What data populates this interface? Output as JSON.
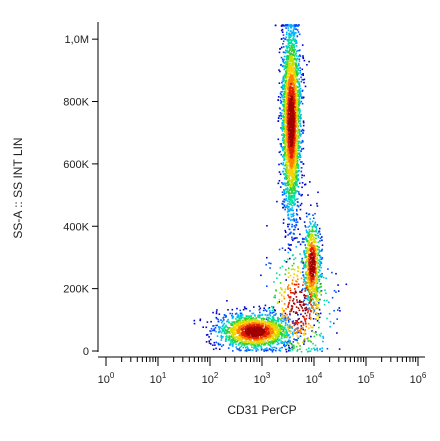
{
  "chart_data": {
    "type": "scatter",
    "plot_style": "density-dot-plot",
    "title": "",
    "xlabel": "CD31 PerCP",
    "ylabel": "SS-A :: SS INT LIN",
    "x_scale": "log",
    "y_scale": "linear",
    "xlim": [
      1,
      1000000
    ],
    "ylim": [
      0,
      1048576
    ],
    "x_ticks": [
      {
        "value": 1,
        "base": "10",
        "exp": "0"
      },
      {
        "value": 10,
        "base": "10",
        "exp": "1"
      },
      {
        "value": 100,
        "base": "10",
        "exp": "2"
      },
      {
        "value": 1000,
        "base": "10",
        "exp": "3"
      },
      {
        "value": 10000,
        "base": "10",
        "exp": "4"
      },
      {
        "value": 100000,
        "base": "10",
        "exp": "5"
      },
      {
        "value": 1000000,
        "base": "10",
        "exp": "6"
      }
    ],
    "y_ticks": [
      {
        "value": 0,
        "label": "0"
      },
      {
        "value": 200000,
        "label": "200K"
      },
      {
        "value": 400000,
        "label": "400K"
      },
      {
        "value": 600000,
        "label": "600K"
      },
      {
        "value": 800000,
        "label": "800K"
      },
      {
        "value": 1000000,
        "label": "1,0M"
      }
    ],
    "density_colors": [
      "#0000cc",
      "#0050ff",
      "#00b4ff",
      "#00e0a0",
      "#30d030",
      "#c8e000",
      "#ffd000",
      "#ff8000",
      "#e02000",
      "#a00000"
    ],
    "grid": false,
    "legend": "none",
    "populations": [
      {
        "x_log_center": 2.85,
        "x_log_sd": 0.35,
        "y_center": 65000,
        "y_sd": 28000,
        "weight": 0.28
      },
      {
        "x_log_center": 3.55,
        "x_log_sd": 0.09,
        "y_center": 740000,
        "y_sd": 150000,
        "weight": 0.52
      },
      {
        "x_log_center": 3.95,
        "x_log_sd": 0.08,
        "y_center": 280000,
        "y_sd": 70000,
        "weight": 0.12
      },
      {
        "x_log_center": 3.7,
        "x_log_sd": 0.3,
        "y_center": 150000,
        "y_sd": 90000,
        "weight": 0.08
      }
    ]
  }
}
